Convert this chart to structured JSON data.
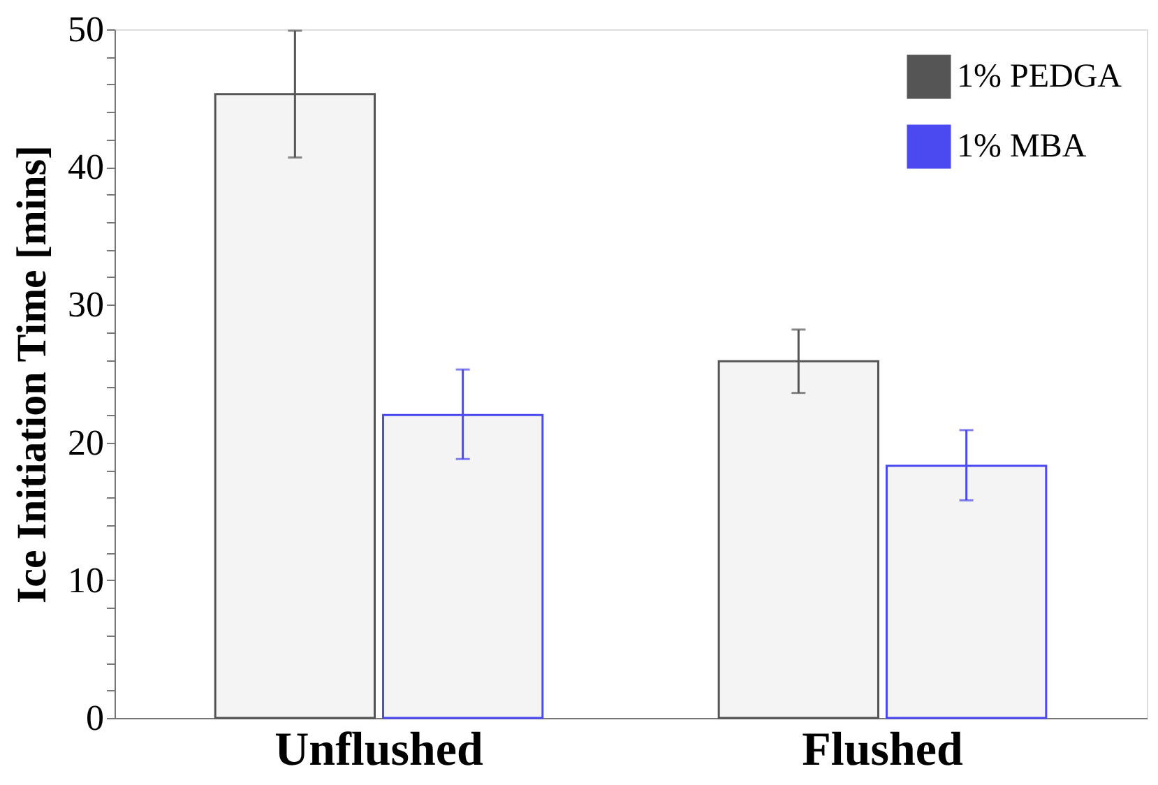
{
  "chart_data": {
    "type": "bar",
    "ylabel": "Ice Initiation Time [mins]",
    "categories": [
      "Unflushed",
      "Flushed"
    ],
    "series": [
      {
        "name": "1% PEDGA",
        "color": "#555555",
        "values": [
          45.3,
          25.9
        ],
        "errors": [
          [
            40.7,
            49.9
          ],
          [
            23.6,
            28.2
          ]
        ]
      },
      {
        "name": "1% MBA",
        "color": "#4a4af0",
        "values": [
          22.0,
          18.3
        ],
        "errors": [
          [
            18.8,
            25.3
          ],
          [
            15.8,
            20.9
          ]
        ]
      }
    ],
    "ylim": [
      0,
      50
    ],
    "yticks": [
      0,
      {
        "value": 2,
        "label": null
      },
      {
        "value": 4,
        "label": null
      },
      {
        "value": 6,
        "label": null
      },
      {
        "value": 8,
        "label": null
      },
      10,
      {
        "value": 12,
        "label": null
      },
      {
        "value": 14,
        "label": null
      },
      {
        "value": 16,
        "label": null
      },
      {
        "value": 18,
        "label": null
      },
      20,
      {
        "value": 22,
        "label": null
      },
      {
        "value": 24,
        "label": null
      },
      {
        "value": 26,
        "label": null
      },
      {
        "value": 28,
        "label": null
      },
      30,
      {
        "value": 32,
        "label": null
      },
      {
        "value": 34,
        "label": null
      },
      {
        "value": 36,
        "label": null
      },
      {
        "value": 38,
        "label": null
      },
      40,
      {
        "value": 42,
        "label": null
      },
      {
        "value": 44,
        "label": null
      },
      {
        "value": 46,
        "label": null
      },
      {
        "value": 48,
        "label": null
      },
      50
    ],
    "grid": false,
    "legend": "top right"
  }
}
